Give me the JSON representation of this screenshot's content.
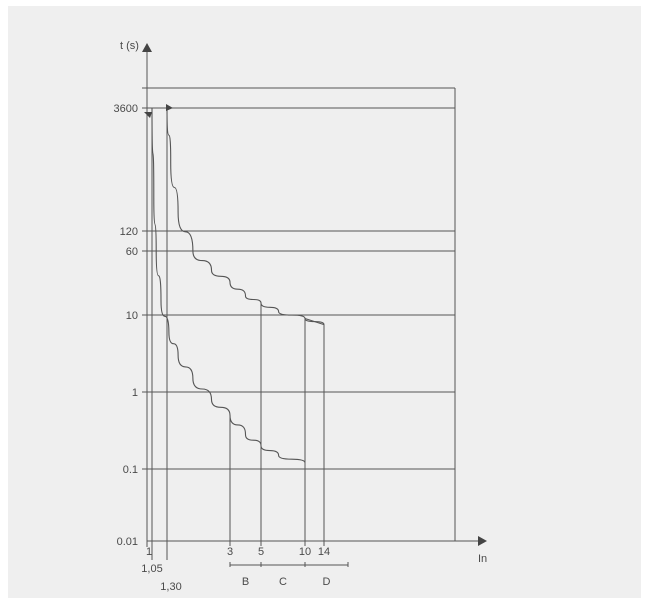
{
  "chart_data": {
    "type": "line",
    "title": "",
    "ylabel": "t (s)",
    "xlabel": "In",
    "y_scale": "log",
    "x_scale": "nonlinear",
    "grid": true,
    "y_ticks": [
      {
        "value": 3600,
        "label": "3600"
      },
      {
        "value": 120,
        "label": "120"
      },
      {
        "value": 60,
        "label": "60"
      },
      {
        "value": 10,
        "label": "10"
      },
      {
        "value": 1,
        "label": "1"
      },
      {
        "value": 0.1,
        "label": "0.1"
      },
      {
        "value": 0.01,
        "label": "0.01"
      }
    ],
    "x_ticks": [
      {
        "value": 1,
        "label": "1"
      },
      {
        "value": 1.05,
        "label": "1,05"
      },
      {
        "value": 1.3,
        "label": "1,30"
      },
      {
        "value": 3,
        "label": "3"
      },
      {
        "value": 5,
        "label": "5"
      },
      {
        "value": 10,
        "label": "10"
      },
      {
        "value": 14,
        "label": "14"
      }
    ],
    "ranges": [
      {
        "label": "B",
        "from": 3,
        "to": 5
      },
      {
        "label": "C",
        "from": 5,
        "to": 10
      },
      {
        "label": "D",
        "from": 10,
        "to": 14
      }
    ],
    "series": [
      {
        "points": [
          [
            1.05,
            3600
          ],
          [
            1.08,
            300
          ],
          [
            1.12,
            60
          ],
          [
            1.2,
            15
          ],
          [
            1.35,
            6
          ],
          [
            1.6,
            3
          ],
          [
            2,
            1.5
          ],
          [
            2.5,
            0.8
          ],
          [
            3,
            0.5
          ],
          [
            4,
            0.28
          ],
          [
            5,
            0.2
          ],
          [
            7,
            0.15
          ],
          [
            10,
            0.12
          ]
        ]
      },
      {
        "points": [
          [
            1.3,
            3600
          ],
          [
            1.4,
            800
          ],
          [
            1.6,
            200
          ],
          [
            2,
            60
          ],
          [
            2.5,
            35
          ],
          [
            3,
            25
          ],
          [
            4,
            17
          ],
          [
            5,
            14
          ],
          [
            7,
            11
          ],
          [
            10,
            9
          ],
          [
            14,
            7.5
          ]
        ]
      }
    ],
    "verticals": [
      {
        "x": 3,
        "from": 0.01,
        "to": 0.5
      },
      {
        "x": 5,
        "from": 0.01,
        "to": 14
      },
      {
        "x": 10,
        "from": 0.01,
        "to": 9
      },
      {
        "x": 14,
        "from": 0.01,
        "to": 7.5
      }
    ]
  }
}
